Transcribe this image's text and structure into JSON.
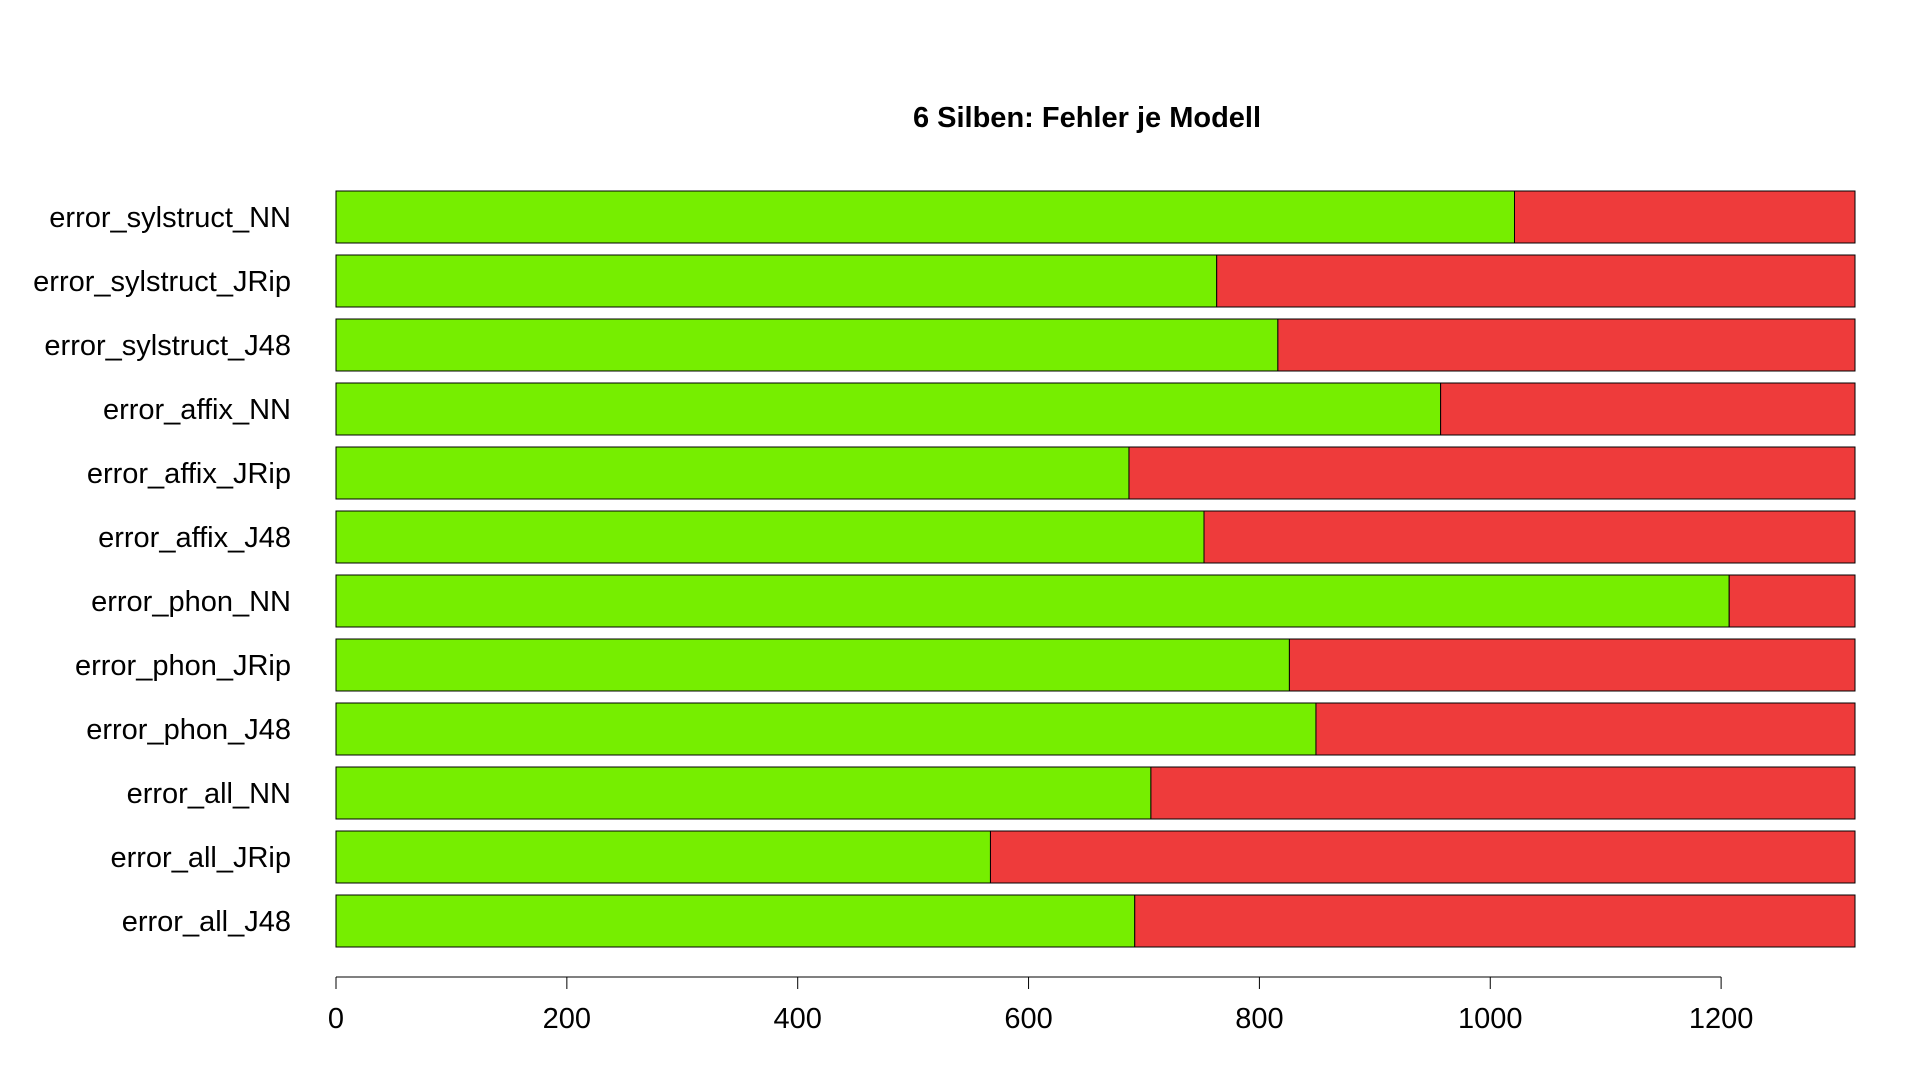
{
  "chart_data": {
    "type": "bar",
    "orientation": "horizontal",
    "stacked": true,
    "title": "6 Silben: Fehler je Modell",
    "xlabel": "",
    "ylabel": "",
    "xlim": [
      0,
      1316
    ],
    "xticks": [
      0,
      200,
      400,
      600,
      800,
      1000,
      1200
    ],
    "grid": false,
    "legend": "none",
    "categories": [
      "error_sylstruct_NN",
      "error_sylstruct_JRip",
      "error_sylstruct_J48",
      "error_affix_NN",
      "error_affix_JRip",
      "error_affix_J48",
      "error_phon_NN",
      "error_phon_JRip",
      "error_phon_J48",
      "error_all_NN",
      "error_all_JRip",
      "error_all_J48"
    ],
    "series": [
      {
        "color": "#76ee00",
        "values": [
          1021,
          763,
          816,
          957,
          687,
          752,
          1207,
          826,
          849,
          706,
          567,
          692
        ]
      },
      {
        "color": "#ee3b3b",
        "values": [
          295,
          553,
          500,
          359,
          629,
          564,
          109,
          490,
          467,
          610,
          749,
          624
        ]
      }
    ]
  }
}
